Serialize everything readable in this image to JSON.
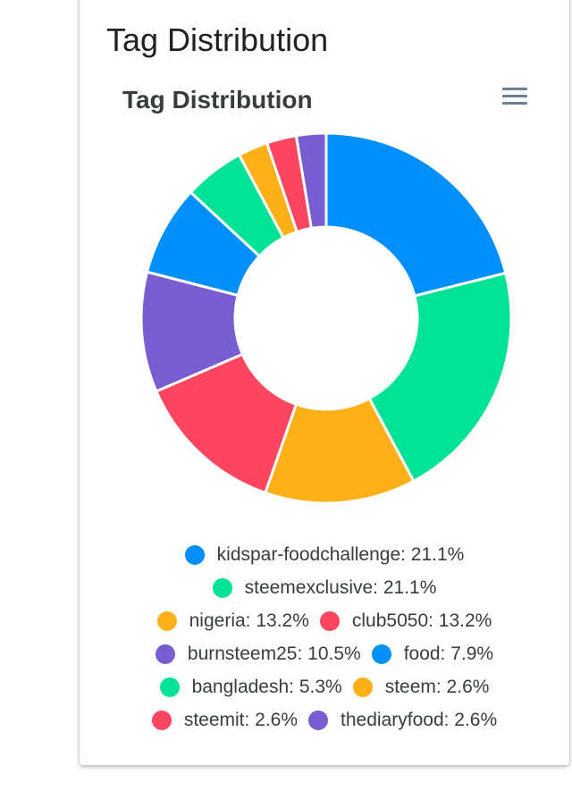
{
  "card": {
    "title": "Tag Distribution"
  },
  "chart_data": {
    "type": "pie",
    "donut": true,
    "title": "Tag Distribution",
    "unit": "%",
    "legend_position": "bottom",
    "series": [
      {
        "name": "kidspar-foodchallenge",
        "value": 21.1,
        "color": "#008ffb"
      },
      {
        "name": "steemexclusive",
        "value": 21.1,
        "color": "#00e396"
      },
      {
        "name": "nigeria",
        "value": 13.2,
        "color": "#feb019"
      },
      {
        "name": "club5050",
        "value": 13.2,
        "color": "#ff4560"
      },
      {
        "name": "burnsteem25",
        "value": 10.5,
        "color": "#775dd0"
      },
      {
        "name": "food",
        "value": 7.9,
        "color": "#008ffb"
      },
      {
        "name": "bangladesh",
        "value": 5.3,
        "color": "#00e396"
      },
      {
        "name": "steem",
        "value": 2.6,
        "color": "#feb019"
      },
      {
        "name": "steemit",
        "value": 2.6,
        "color": "#ff4560"
      },
      {
        "name": "thediaryfood",
        "value": 2.6,
        "color": "#775dd0"
      }
    ]
  },
  "toolbar": {
    "menu_icon": "hamburger-menu-icon"
  }
}
